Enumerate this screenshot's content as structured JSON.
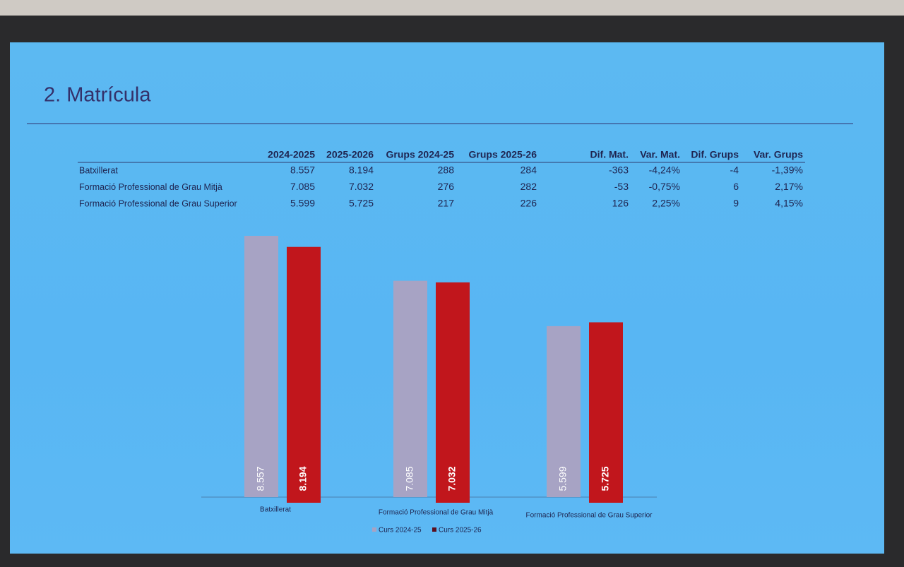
{
  "title": "2. Matrícula",
  "table": {
    "columns": [
      "2024-2025",
      "2025-2026",
      "Grups 2024-25",
      "Grups 2025-26",
      "Dif. Mat.",
      "Var. Mat.",
      "Dif. Grups",
      "Var. Grups"
    ],
    "rows": [
      [
        "Batxillerat",
        "8.557",
        "8.194",
        "288",
        "284",
        "-363",
        "-4,24%",
        "-4",
        "-1,39%"
      ],
      [
        "Formació Professional de Grau Mitjà",
        "7.085",
        "7.032",
        "276",
        "282",
        "-53",
        "-0,75%",
        "6",
        "2,17%"
      ],
      [
        "Formació Professional de Grau Superior",
        "5.599",
        "5.725",
        "217",
        "226",
        "126",
        "2,25%",
        "9",
        "4,15%"
      ]
    ]
  },
  "chart_data": {
    "type": "bar",
    "categories": [
      "Batxillerat",
      "Formació Professional de Grau Mitjà",
      "Formació Professional de Grau Superior"
    ],
    "series": [
      {
        "name": "Curs 2024-25",
        "color": "#a7a3c4",
        "values": [
          8557,
          7085,
          5599
        ],
        "value_labels": [
          "8.557",
          "7.085",
          "5.599"
        ]
      },
      {
        "name": "Curs 2025-26",
        "color": "#c1161c",
        "values": [
          8194,
          7032,
          5725
        ],
        "value_labels": [
          "8.194",
          "7.032",
          "5.725"
        ]
      }
    ],
    "legend": "bottom"
  }
}
